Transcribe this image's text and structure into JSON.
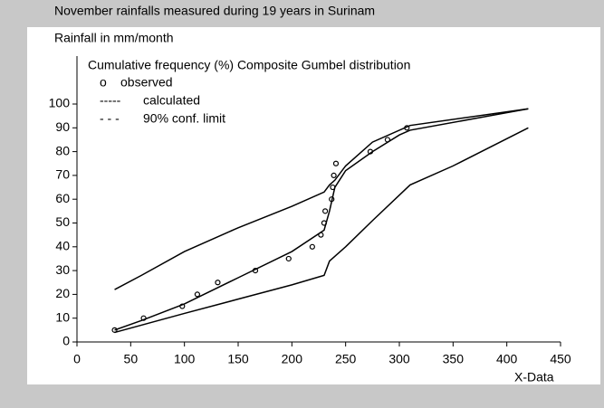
{
  "chart_data": {
    "type": "scatter",
    "title": "November rainfalls measured during 19 years in Surinam",
    "subtitle": "Rainfall in mm/month",
    "legend_title": "Cumulative frequency (%)   Composite Gumbel distribution",
    "x_label": "X-Data",
    "xlim": [
      0,
      450
    ],
    "xticks": [
      0,
      50,
      100,
      150,
      200,
      250,
      300,
      350,
      400,
      450
    ],
    "ylim": [
      0,
      100
    ],
    "yticks": [
      0,
      10,
      20,
      30,
      40,
      50,
      60,
      70,
      80,
      90,
      100
    ],
    "series": [
      {
        "name": "observed",
        "symbol": "o",
        "kind": "points",
        "color": "#000000",
        "x": [
          35,
          62,
          98,
          112,
          131,
          166,
          197,
          219,
          227,
          230,
          231,
          237,
          238,
          239,
          241,
          273,
          289,
          307
        ],
        "values": [
          5,
          10,
          15,
          20,
          25,
          30,
          35,
          40,
          45,
          50,
          55,
          60,
          65,
          70,
          75,
          80,
          85,
          90
        ]
      },
      {
        "name": "calculated",
        "symbol": "-----",
        "kind": "line",
        "color": "#000000",
        "x": [
          35,
          60,
          100,
          150,
          200,
          230,
          235,
          240,
          250,
          275,
          300,
          310,
          420
        ],
        "values": [
          5,
          9,
          16,
          27,
          38,
          47,
          55,
          65,
          72,
          80,
          87,
          89,
          98
        ]
      },
      {
        "name": "90% conf. limit",
        "symbol": "- - -",
        "kind": "line",
        "color": "#000000",
        "x": [
          35,
          60,
          100,
          150,
          200,
          230,
          235,
          240,
          250,
          275,
          310,
          420
        ],
        "values": [
          22,
          28,
          38,
          48,
          57,
          63,
          66,
          68,
          74,
          84,
          91,
          98
        ]
      },
      {
        "kind": "line",
        "color": "#000000",
        "x": [
          35,
          100,
          150,
          200,
          230,
          235,
          250,
          275,
          310,
          350,
          420
        ],
        "values": [
          4,
          12,
          18,
          24,
          28,
          34,
          40,
          51,
          66,
          74,
          90
        ]
      }
    ]
  }
}
